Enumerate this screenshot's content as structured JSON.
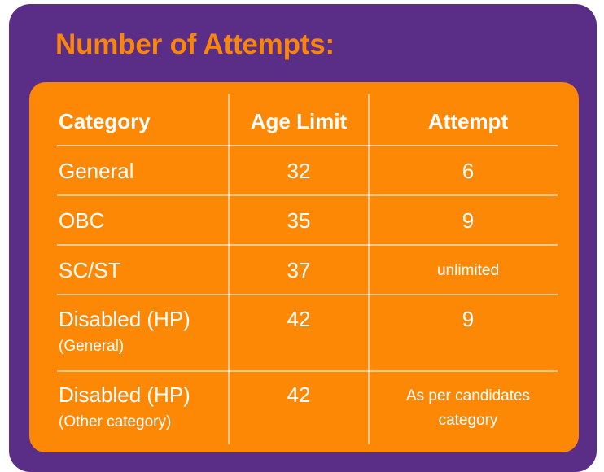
{
  "title": "Number of Attempts:",
  "table": {
    "headers": [
      "Category",
      "Age Limit",
      "Attempt"
    ],
    "rows": [
      {
        "category": "General",
        "category_sub": "",
        "age_limit": "32",
        "attempt": "6",
        "attempt_line2": ""
      },
      {
        "category": "OBC",
        "category_sub": "",
        "age_limit": "35",
        "attempt": "9",
        "attempt_line2": ""
      },
      {
        "category": "SC/ST",
        "category_sub": "",
        "age_limit": "37",
        "attempt": "unlimited",
        "attempt_line2": ""
      },
      {
        "category": "Disabled (HP)",
        "category_sub": "(General)",
        "age_limit": "42",
        "attempt": "9",
        "attempt_line2": ""
      },
      {
        "category": "Disabled (HP)",
        "category_sub": "(Other category)",
        "age_limit": "42",
        "attempt": "As per candidates",
        "attempt_line2": "category"
      }
    ]
  },
  "colors": {
    "card_background": "#5a2d86",
    "panel_background": "#fd8806",
    "title_color": "#f9860b",
    "text_color": "#ffffff"
  }
}
